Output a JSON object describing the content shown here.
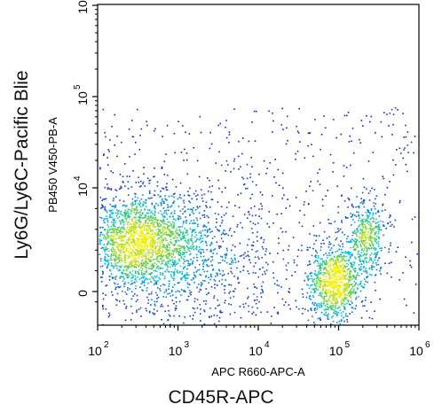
{
  "figure": {
    "outer_xlabel": "CD45R-APC",
    "outer_ylabel": "Ly6G/Ly6C-Pacific Blie"
  },
  "colors": {
    "density_low": "#1515b0",
    "density_mid": "#00b0e0",
    "density_high": "#f0f000",
    "axis": "#000000"
  },
  "chart_data": {
    "type": "scatter",
    "subtype": "flow-cytometry-density",
    "xlabel": "APC R660-APC-A",
    "ylabel": "PB450 V450-PB-A",
    "x_scale": "log",
    "y_scale": "biexponential",
    "xlim": [
      100,
      1000000
    ],
    "ylim": [
      -1200,
      1000000
    ],
    "grid": false,
    "x_ticks": [
      {
        "value": 100,
        "base": "10",
        "exp": "2"
      },
      {
        "value": 1000,
        "base": "10",
        "exp": "3"
      },
      {
        "value": 10000,
        "base": "10",
        "exp": "4"
      },
      {
        "value": 100000,
        "base": "10",
        "exp": "5"
      },
      {
        "value": 1000000,
        "base": "10",
        "exp": "6"
      }
    ],
    "y_ticks": [
      {
        "value": 0,
        "base": "0",
        "exp": ""
      },
      {
        "value": 10000,
        "base": "10",
        "exp": "4"
      },
      {
        "value": 100000,
        "base": "10",
        "exp": "5"
      },
      {
        "value": 1000000,
        "base": "10",
        "exp": "6"
      }
    ],
    "populations": [
      {
        "name": "",
        "center_x": 320,
        "center_y": 5000,
        "count": 1900,
        "spread_x": 0.38,
        "spread_y": 0.55,
        "peak": "green-yellow"
      },
      {
        "name": "",
        "center_x": 85000,
        "center_y": 900,
        "count": 900,
        "spread_x": 0.16,
        "spread_y": 0.45,
        "peak": "yellow-green"
      },
      {
        "name": "",
        "center_x": 220000,
        "center_y": 5500,
        "count": 450,
        "spread_x": 0.13,
        "spread_y": 0.45,
        "peak": "green-blue"
      },
      {
        "name": "",
        "center_x": 2000,
        "center_y": 3000,
        "count": 700,
        "spread_x": 0.55,
        "spread_y": 0.9,
        "peak": "blue"
      }
    ]
  }
}
